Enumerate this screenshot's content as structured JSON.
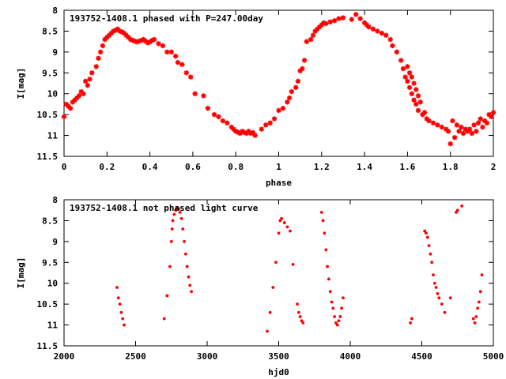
{
  "colors": {
    "points": "#ff0000",
    "axes": "#000000",
    "background": "#ffffff"
  },
  "chart_data": [
    {
      "type": "scatter",
      "title": "193752-1408.1 phased with P=247.00day",
      "xlabel": "phase",
      "ylabel": "I[mag]",
      "xlim": [
        0,
        2
      ],
      "ylim": [
        8,
        11.5
      ],
      "y_inverted": true,
      "grid": false,
      "marker": "star",
      "x_ticks": [
        "0",
        "0.2",
        "0.4",
        "0.6",
        "0.8",
        "1",
        "1.2",
        "1.4",
        "1.6",
        "1.8",
        "2"
      ],
      "y_ticks": [
        "8",
        "8.5",
        "9",
        "9.5",
        "10",
        "10.5",
        "11",
        "11.5"
      ],
      "x": [
        0.0,
        0.01,
        0.02,
        0.03,
        0.04,
        0.05,
        0.06,
        0.07,
        0.08,
        0.09,
        0.1,
        0.11,
        0.12,
        0.13,
        0.15,
        0.16,
        0.17,
        0.18,
        0.19,
        0.2,
        0.21,
        0.22,
        0.23,
        0.24,
        0.25,
        0.26,
        0.27,
        0.28,
        0.29,
        0.3,
        0.31,
        0.32,
        0.33,
        0.34,
        0.35,
        0.36,
        0.37,
        0.38,
        0.39,
        0.4,
        0.41,
        0.42,
        0.44,
        0.46,
        0.48,
        0.5,
        0.52,
        0.53,
        0.55,
        0.57,
        0.59,
        0.61,
        0.65,
        0.67,
        0.7,
        0.72,
        0.74,
        0.76,
        0.78,
        0.79,
        0.8,
        0.81,
        0.82,
        0.83,
        0.84,
        0.85,
        0.86,
        0.87,
        0.88,
        0.89,
        0.92,
        0.94,
        0.96,
        0.98,
        1.0,
        1.02,
        1.04,
        1.05,
        1.06,
        1.08,
        1.09,
        1.1,
        1.11,
        1.12,
        1.13,
        1.15,
        1.16,
        1.17,
        1.18,
        1.19,
        1.2,
        1.21,
        1.22,
        1.24,
        1.26,
        1.28,
        1.3,
        1.34,
        1.36,
        1.38,
        1.4,
        1.41,
        1.42,
        1.44,
        1.46,
        1.48,
        1.5,
        1.52,
        1.53,
        1.55,
        1.57,
        1.58,
        1.59,
        1.6,
        1.6,
        1.61,
        1.61,
        1.62,
        1.62,
        1.63,
        1.63,
        1.64,
        1.64,
        1.65,
        1.65,
        1.66,
        1.67,
        1.68,
        1.69,
        1.7,
        1.72,
        1.74,
        1.76,
        1.78,
        1.79,
        1.8,
        1.81,
        1.82,
        1.83,
        1.84,
        1.85,
        1.86,
        1.87,
        1.88,
        1.89,
        1.9,
        1.91,
        1.92,
        1.93,
        1.94,
        1.95,
        1.96,
        1.97,
        1.98,
        1.99,
        2.0
      ],
      "y": [
        10.55,
        10.25,
        10.3,
        10.35,
        10.2,
        10.15,
        10.1,
        10.05,
        9.95,
        10.0,
        9.7,
        9.8,
        9.65,
        9.5,
        9.35,
        9.15,
        9.0,
        8.85,
        8.7,
        8.65,
        8.6,
        8.55,
        8.5,
        8.48,
        8.45,
        8.5,
        8.52,
        8.55,
        8.6,
        8.65,
        8.7,
        8.72,
        8.74,
        8.76,
        8.74,
        8.72,
        8.7,
        8.74,
        8.78,
        8.76,
        8.72,
        8.7,
        8.8,
        8.85,
        9.0,
        9.0,
        9.1,
        9.25,
        9.3,
        9.5,
        9.6,
        10.0,
        10.05,
        10.35,
        10.5,
        10.55,
        10.65,
        10.7,
        10.8,
        10.85,
        10.9,
        10.92,
        10.95,
        10.9,
        10.93,
        10.95,
        10.9,
        10.95,
        10.93,
        11.0,
        10.85,
        10.75,
        10.7,
        10.6,
        10.4,
        10.35,
        10.2,
        10.1,
        9.95,
        9.85,
        9.7,
        9.45,
        9.4,
        9.2,
        8.75,
        8.7,
        8.6,
        8.5,
        8.45,
        8.4,
        8.35,
        8.3,
        8.32,
        8.28,
        8.25,
        8.2,
        8.18,
        8.22,
        8.1,
        8.2,
        8.3,
        8.35,
        8.4,
        8.45,
        8.5,
        8.55,
        8.6,
        8.7,
        8.85,
        9.0,
        9.2,
        9.4,
        9.6,
        9.35,
        9.7,
        9.5,
        9.85,
        9.6,
        10.0,
        9.75,
        10.15,
        9.9,
        10.25,
        10.05,
        10.4,
        10.2,
        10.5,
        10.45,
        10.6,
        10.65,
        10.7,
        10.75,
        10.8,
        10.85,
        10.9,
        11.2,
        10.65,
        11.05,
        10.75,
        10.9,
        10.8,
        10.95,
        10.85,
        10.9,
        10.85,
        10.95,
        10.75,
        10.9,
        10.7,
        10.6,
        10.8,
        10.65,
        10.7,
        10.5,
        10.55,
        10.45
      ],
      "x_index": "x"
    },
    {
      "type": "scatter",
      "title": "193752-1408.1 not phased light curve",
      "xlabel": "hjd0",
      "ylabel": "I[mag]",
      "xlim": [
        2000,
        5000
      ],
      "ylim": [
        8,
        11.5
      ],
      "y_inverted": true,
      "grid": false,
      "marker": "dot",
      "x_ticks": [
        "2000",
        "2500",
        "3000",
        "3500",
        "4000",
        "4500",
        "5000"
      ],
      "y_ticks": [
        "8",
        "8.5",
        "9",
        "9.5",
        "10",
        "10.5",
        "11",
        "11.5"
      ],
      "segments": [
        {
          "x": [
            2370,
            2380,
            2390,
            2400,
            2410,
            2420
          ],
          "y": [
            10.1,
            10.35,
            10.5,
            10.7,
            10.85,
            11.0
          ]
        },
        {
          "x": [
            2700,
            2720,
            2740,
            2750,
            2755,
            2760
          ],
          "y": [
            10.85,
            10.3,
            9.6,
            9.0,
            8.7,
            8.5
          ]
        },
        {
          "x": [
            2770,
            2780,
            2790,
            2800,
            2810,
            2820,
            2830,
            2840,
            2850,
            2860,
            2870,
            2880,
            2890
          ],
          "y": [
            8.35,
            8.25,
            8.2,
            8.22,
            8.3,
            8.45,
            8.7,
            9.0,
            9.3,
            9.6,
            9.85,
            10.05,
            10.2
          ]
        },
        {
          "x": [
            3420,
            3440,
            3460,
            3480,
            3500,
            3510,
            3520,
            3540,
            3560,
            3580,
            3600
          ],
          "y": [
            11.15,
            10.7,
            10.1,
            9.5,
            8.8,
            8.5,
            8.45,
            8.55,
            8.65,
            8.75,
            9.55
          ]
        },
        {
          "x": [
            3630,
            3640,
            3650,
            3660,
            3670
          ],
          "y": [
            10.5,
            10.7,
            10.8,
            10.9,
            10.95
          ]
        },
        {
          "x": [
            3800,
            3810,
            3820,
            3830,
            3840,
            3850,
            3860,
            3870
          ],
          "y": [
            8.3,
            8.5,
            8.8,
            9.2,
            9.6,
            9.9,
            10.2,
            10.45
          ]
        },
        {
          "x": [
            3880,
            3890,
            3900,
            3910,
            3920,
            3930,
            3940,
            3950
          ],
          "y": [
            10.6,
            10.8,
            10.95,
            11.0,
            10.9,
            10.8,
            10.6,
            10.35
          ]
        },
        {
          "x": [
            4420,
            4430
          ],
          "y": [
            10.95,
            10.85
          ]
        },
        {
          "x": [
            4520,
            4530,
            4540,
            4550,
            4560,
            4570,
            4580,
            4590,
            4600,
            4610,
            4620,
            4640,
            4660,
            4700
          ],
          "y": [
            8.75,
            8.8,
            8.9,
            9.1,
            9.3,
            9.5,
            9.8,
            10.0,
            10.1,
            10.25,
            10.35,
            10.5,
            10.7,
            10.35
          ]
        },
        {
          "x": [
            4740,
            4750,
            4780
          ],
          "y": [
            8.3,
            8.25,
            8.15
          ]
        },
        {
          "x": [
            4860,
            4870,
            4880,
            4890,
            4900,
            4910,
            4920
          ],
          "y": [
            10.85,
            10.95,
            10.8,
            10.6,
            10.45,
            10.2,
            9.8
          ]
        }
      ]
    }
  ]
}
